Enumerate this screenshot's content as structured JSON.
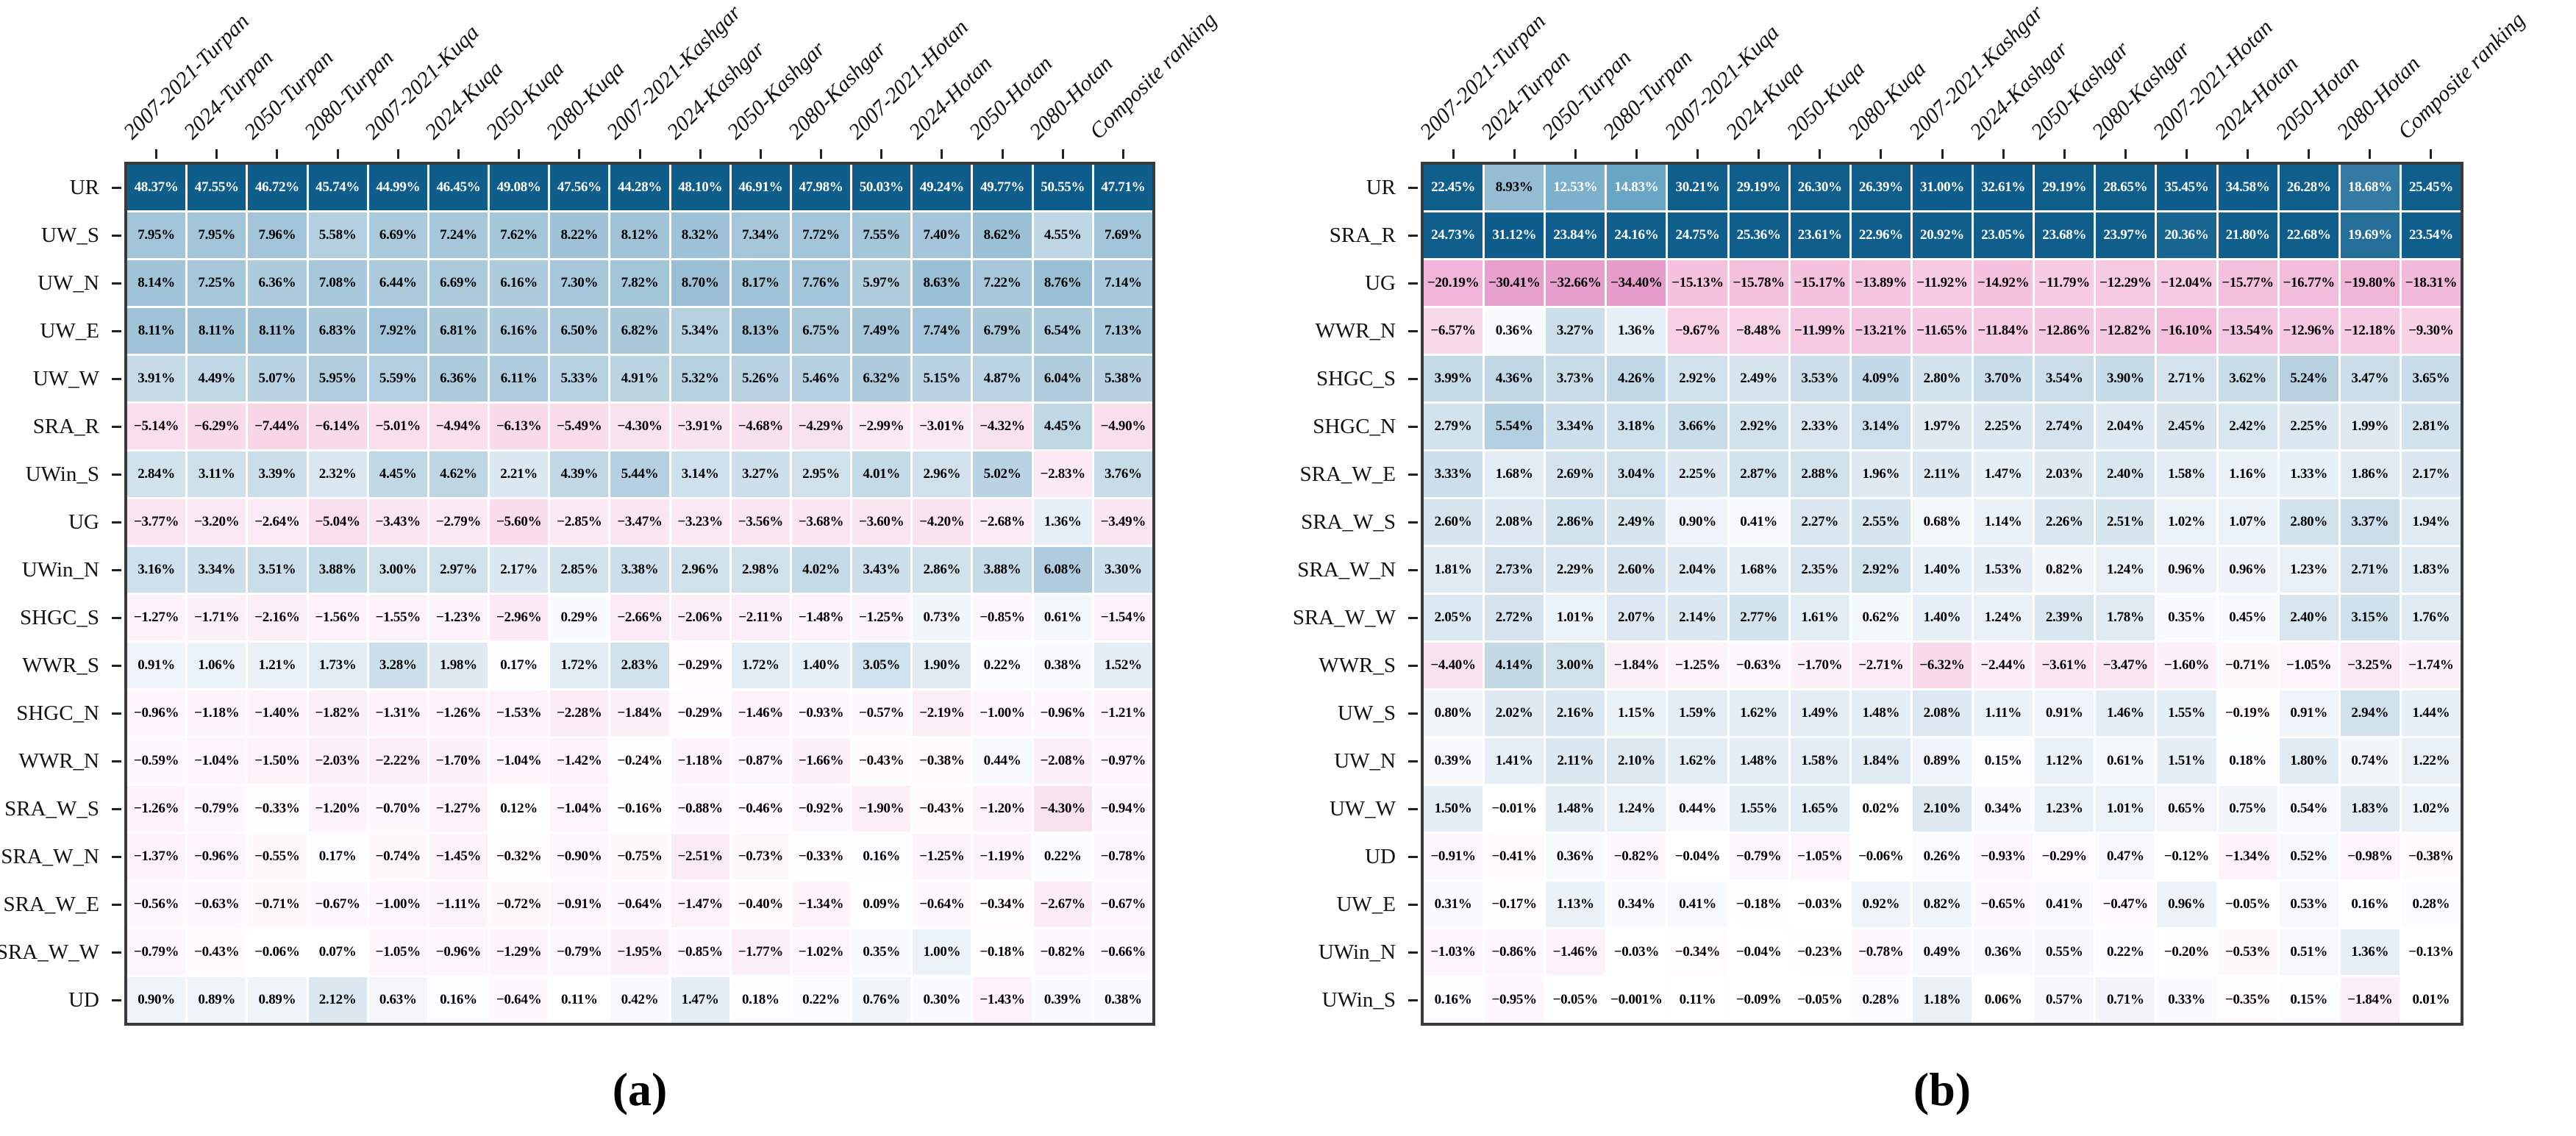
{
  "figure": {
    "caption_a": "(a)",
    "caption_b": "(b)"
  },
  "colors": {
    "positive_max": "#0e5c8b",
    "negative_max": "#e59ccb",
    "grid_line": "#ffffff",
    "panel_border": "#3a3a3a",
    "text_on_dark": "#ffffff",
    "text_on_light": "#000000"
  },
  "chart_data": [
    {
      "type": "heatmap",
      "panel": "a",
      "caption": "(a)",
      "value_format": "percent",
      "legend_position": "none",
      "columns": [
        "2007-2021-Turpan",
        "2024-Turpan",
        "2050-Turpan",
        "2080-Turpan",
        "2007-2021-Kuqa",
        "2024-Kuqa",
        "2050-Kuqa",
        "2080-Kuqa",
        "2007-2021-Kashgar",
        "2024-Kashgar",
        "2050-Kashgar",
        "2080-Kashgar",
        "2007-2021-Hotan",
        "2024-Hotan",
        "2050-Hotan",
        "2080-Hotan",
        "Composite ranking"
      ],
      "rows": [
        "UR",
        "UW_S",
        "UW_N",
        "UW_E",
        "UW_W",
        "SRA_R",
        "UWin_S",
        "UG",
        "UWin_N",
        "SHGC_S",
        "WWR_S",
        "SHGC_N",
        "WWR_N",
        "SRA_W_S",
        "SRA_W_N",
        "SRA_W_E",
        "SRA_W_W",
        "UD"
      ],
      "values_percent": [
        [
          48.37,
          47.55,
          46.72,
          45.74,
          44.99,
          46.45,
          49.08,
          47.56,
          44.28,
          48.1,
          46.91,
          47.98,
          50.03,
          49.24,
          49.77,
          50.55,
          47.71
        ],
        [
          7.95,
          7.95,
          7.96,
          5.58,
          6.69,
          7.24,
          7.62,
          8.22,
          8.12,
          8.32,
          7.34,
          7.72,
          7.55,
          7.4,
          8.62,
          4.55,
          7.69
        ],
        [
          8.14,
          7.25,
          6.36,
          7.08,
          6.44,
          6.69,
          6.16,
          7.3,
          7.82,
          8.7,
          8.17,
          7.76,
          5.97,
          8.63,
          7.22,
          8.76,
          7.14
        ],
        [
          8.11,
          8.11,
          8.11,
          6.83,
          7.92,
          6.81,
          6.16,
          6.5,
          6.82,
          5.34,
          8.13,
          6.75,
          7.49,
          7.74,
          6.79,
          6.54,
          7.13
        ],
        [
          3.91,
          4.49,
          5.07,
          5.95,
          5.59,
          6.36,
          6.11,
          5.33,
          4.91,
          5.32,
          5.26,
          5.46,
          6.32,
          5.15,
          4.87,
          6.04,
          5.38
        ],
        [
          -5.14,
          -6.29,
          -7.44,
          -6.14,
          -5.01,
          -4.94,
          -6.13,
          -5.49,
          -4.3,
          -3.91,
          -4.68,
          -4.29,
          -2.99,
          -3.01,
          -4.32,
          4.45,
          -4.9
        ],
        [
          2.84,
          3.11,
          3.39,
          2.32,
          4.45,
          4.62,
          2.21,
          4.39,
          5.44,
          3.14,
          3.27,
          2.95,
          4.01,
          2.96,
          5.02,
          -2.83,
          3.76
        ],
        [
          -3.77,
          -3.2,
          -2.64,
          -5.04,
          -3.43,
          -2.79,
          -5.6,
          -2.85,
          -3.47,
          -3.23,
          -3.56,
          -3.68,
          -3.6,
          -4.2,
          -2.68,
          1.36,
          -3.49
        ],
        [
          3.16,
          3.34,
          3.51,
          3.88,
          3.0,
          2.97,
          2.17,
          2.85,
          3.38,
          2.96,
          2.98,
          4.02,
          3.43,
          2.86,
          3.88,
          6.08,
          3.3
        ],
        [
          -1.27,
          -1.71,
          -2.16,
          -1.56,
          -1.55,
          -1.23,
          -2.96,
          0.29,
          -2.66,
          -2.06,
          -2.11,
          -1.48,
          -1.25,
          0.73,
          -0.85,
          0.61,
          -1.54
        ],
        [
          0.91,
          1.06,
          1.21,
          1.73,
          3.28,
          1.98,
          0.17,
          1.72,
          2.83,
          -0.29,
          1.72,
          1.4,
          3.05,
          1.9,
          0.22,
          0.38,
          1.52
        ],
        [
          -0.96,
          -1.18,
          -1.4,
          -1.82,
          -1.31,
          -1.26,
          -1.53,
          -2.28,
          -1.84,
          -0.29,
          -1.46,
          -0.93,
          -0.57,
          -2.19,
          -1.0,
          -0.96,
          -1.21
        ],
        [
          -0.59,
          -1.04,
          -1.5,
          -2.03,
          -2.22,
          -1.7,
          -1.04,
          -1.42,
          -0.24,
          -1.18,
          -0.87,
          -1.66,
          -0.43,
          -0.38,
          0.44,
          -2.08,
          -0.97
        ],
        [
          -1.26,
          -0.79,
          -0.33,
          -1.2,
          -0.7,
          -1.27,
          0.12,
          -1.04,
          -0.16,
          -0.88,
          -0.46,
          -0.92,
          -1.9,
          -0.43,
          -1.2,
          -4.3,
          -0.94
        ],
        [
          -1.37,
          -0.96,
          -0.55,
          0.17,
          -0.74,
          -1.45,
          -0.32,
          -0.9,
          -0.75,
          -2.51,
          -0.73,
          -0.33,
          0.16,
          -1.25,
          -1.19,
          0.22,
          -0.78
        ],
        [
          -0.56,
          -0.63,
          -0.71,
          -0.67,
          -1.0,
          -1.11,
          -0.72,
          -0.91,
          -0.64,
          -1.47,
          -0.4,
          -1.34,
          0.09,
          -0.64,
          -0.34,
          -2.67,
          -0.67
        ],
        [
          -0.79,
          -0.43,
          -0.06,
          0.07,
          -1.05,
          -0.96,
          -1.29,
          -0.79,
          -1.95,
          -0.85,
          -1.77,
          -1.02,
          0.35,
          1.0,
          -0.18,
          -0.82,
          -0.66
        ],
        [
          0.9,
          0.89,
          0.89,
          2.12,
          0.63,
          0.16,
          -0.64,
          0.11,
          0.42,
          1.47,
          0.18,
          0.22,
          0.76,
          0.3,
          -1.43,
          0.39,
          0.38
        ]
      ]
    },
    {
      "type": "heatmap",
      "panel": "b",
      "caption": "(b)",
      "value_format": "percent",
      "legend_position": "none",
      "columns": [
        "2007-2021-Turpan",
        "2024-Turpan",
        "2050-Turpan",
        "2080-Turpan",
        "2007-2021-Kuqa",
        "2024-Kuqa",
        "2050-Kuqa",
        "2080-Kuqa",
        "2007-2021-Kashgar",
        "2024-Kashgar",
        "2050-Kashgar",
        "2080-Kashgar",
        "2007-2021-Hotan",
        "2024-Hotan",
        "2050-Hotan",
        "2080-Hotan",
        "Composite ranking"
      ],
      "rows": [
        "UR",
        "SRA_R",
        "UG",
        "WWR_N",
        "SHGC_S",
        "SHGC_N",
        "SRA_W_E",
        "SRA_W_S",
        "SRA_W_N",
        "SRA_W_W",
        "WWR_S",
        "UW_S",
        "UW_N",
        "UW_W",
        "UD",
        "UW_E",
        "UWin_N",
        "UWin_S"
      ],
      "values_percent": [
        [
          22.45,
          8.93,
          12.53,
          14.83,
          30.21,
          29.19,
          26.3,
          26.39,
          31.0,
          32.61,
          29.19,
          28.65,
          35.45,
          34.58,
          26.28,
          18.68,
          25.45
        ],
        [
          24.73,
          31.12,
          23.84,
          24.16,
          24.75,
          25.36,
          23.61,
          22.96,
          20.92,
          23.05,
          23.68,
          23.97,
          20.36,
          21.8,
          22.68,
          19.69,
          23.54
        ],
        [
          -20.19,
          -30.41,
          -32.66,
          -34.4,
          -15.13,
          -15.78,
          -15.17,
          -13.89,
          -11.92,
          -14.92,
          -11.79,
          -12.29,
          -12.04,
          -15.77,
          -16.77,
          -19.8,
          -18.31
        ],
        [
          -6.57,
          0.36,
          3.27,
          1.36,
          -9.67,
          -8.48,
          -11.99,
          -13.21,
          -11.65,
          -11.84,
          -12.86,
          -12.82,
          -16.1,
          -13.54,
          -12.96,
          -12.18,
          -9.3
        ],
        [
          3.99,
          4.36,
          3.73,
          4.26,
          2.92,
          2.49,
          3.53,
          4.09,
          2.8,
          3.7,
          3.54,
          3.9,
          2.71,
          3.62,
          5.24,
          3.47,
          3.65
        ],
        [
          2.79,
          5.54,
          3.34,
          3.18,
          3.66,
          2.92,
          2.33,
          3.14,
          1.97,
          2.25,
          2.74,
          2.04,
          2.45,
          2.42,
          2.25,
          1.99,
          2.81
        ],
        [
          3.33,
          1.68,
          2.69,
          3.04,
          2.25,
          2.87,
          2.88,
          1.96,
          2.11,
          1.47,
          2.03,
          2.4,
          1.58,
          1.16,
          1.33,
          1.86,
          2.17
        ],
        [
          2.6,
          2.08,
          2.86,
          2.49,
          0.9,
          0.41,
          2.27,
          2.55,
          0.68,
          1.14,
          2.26,
          2.51,
          1.02,
          1.07,
          2.8,
          3.37,
          1.94
        ],
        [
          1.81,
          2.73,
          2.29,
          2.6,
          2.04,
          1.68,
          2.35,
          2.92,
          1.4,
          1.53,
          0.82,
          1.24,
          0.96,
          0.96,
          1.23,
          2.71,
          1.83
        ],
        [
          2.05,
          2.72,
          1.01,
          2.07,
          2.14,
          2.77,
          1.61,
          0.62,
          1.4,
          1.24,
          2.39,
          1.78,
          0.35,
          0.45,
          2.4,
          3.15,
          1.76
        ],
        [
          -4.4,
          4.14,
          3.0,
          -1.84,
          -1.25,
          -0.63,
          -1.7,
          -2.71,
          -6.32,
          -2.44,
          -3.61,
          -3.47,
          -1.6,
          -0.71,
          -1.05,
          -3.25,
          -1.74
        ],
        [
          0.8,
          2.02,
          2.16,
          1.15,
          1.59,
          1.62,
          1.49,
          1.48,
          2.08,
          1.11,
          0.91,
          1.46,
          1.55,
          -0.19,
          0.91,
          2.94,
          1.44
        ],
        [
          0.39,
          1.41,
          2.11,
          2.1,
          1.62,
          1.48,
          1.58,
          1.84,
          0.89,
          0.15,
          1.12,
          0.61,
          1.51,
          0.18,
          1.8,
          0.74,
          1.22
        ],
        [
          1.5,
          -0.01,
          1.48,
          1.24,
          0.44,
          1.55,
          1.65,
          0.02,
          2.1,
          0.34,
          1.23,
          1.01,
          0.65,
          0.75,
          0.54,
          1.83,
          1.02
        ],
        [
          -0.91,
          -0.41,
          0.36,
          -0.82,
          -0.04,
          -0.79,
          -1.05,
          -0.06,
          0.26,
          -0.93,
          -0.29,
          0.47,
          -0.12,
          -1.34,
          0.52,
          -0.98,
          -0.38
        ],
        [
          0.31,
          -0.17,
          1.13,
          0.34,
          0.41,
          -0.18,
          -0.03,
          0.92,
          0.82,
          -0.65,
          0.41,
          -0.47,
          0.96,
          -0.05,
          0.53,
          0.16,
          0.28
        ],
        [
          -1.03,
          -0.86,
          -1.46,
          -0.03,
          -0.34,
          -0.04,
          -0.23,
          -0.78,
          0.49,
          0.36,
          0.55,
          0.22,
          -0.2,
          -0.53,
          0.51,
          1.36,
          -0.13
        ],
        [
          0.16,
          -0.95,
          -0.05,
          -0.001,
          0.11,
          -0.09,
          -0.05,
          0.28,
          1.18,
          0.06,
          0.57,
          0.71,
          0.33,
          -0.35,
          0.15,
          -1.84,
          0.01
        ]
      ]
    }
  ]
}
